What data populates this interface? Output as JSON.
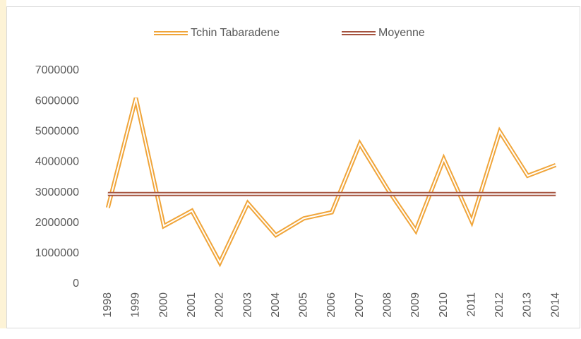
{
  "chart_data": {
    "type": "line",
    "categories": [
      "1998",
      "1999",
      "2000",
      "2001",
      "2002",
      "2003",
      "2004",
      "2005",
      "2006",
      "2007",
      "2008",
      "2009",
      "2010",
      "2011",
      "2012",
      "2013",
      "2014"
    ],
    "series": [
      {
        "name": "Tchin Tabaradene",
        "color": "#f0a53a",
        "values": [
          2500000,
          6100000,
          1900000,
          2400000,
          700000,
          2650000,
          1600000,
          2150000,
          2350000,
          4600000,
          3100000,
          1750000,
          4100000,
          2050000,
          5000000,
          3550000,
          3900000
        ]
      },
      {
        "name": "Moyenne",
        "color": "#a5533f",
        "values": [
          2950000,
          2950000,
          2950000,
          2950000,
          2950000,
          2950000,
          2950000,
          2950000,
          2950000,
          2950000,
          2950000,
          2950000,
          2950000,
          2950000,
          2950000,
          2950000,
          2950000
        ]
      }
    ],
    "ylim": [
      0,
      7000000
    ],
    "yticks": [
      0,
      1000000,
      2000000,
      3000000,
      4000000,
      5000000,
      6000000,
      7000000
    ],
    "grid": false,
    "legend": "top"
  }
}
